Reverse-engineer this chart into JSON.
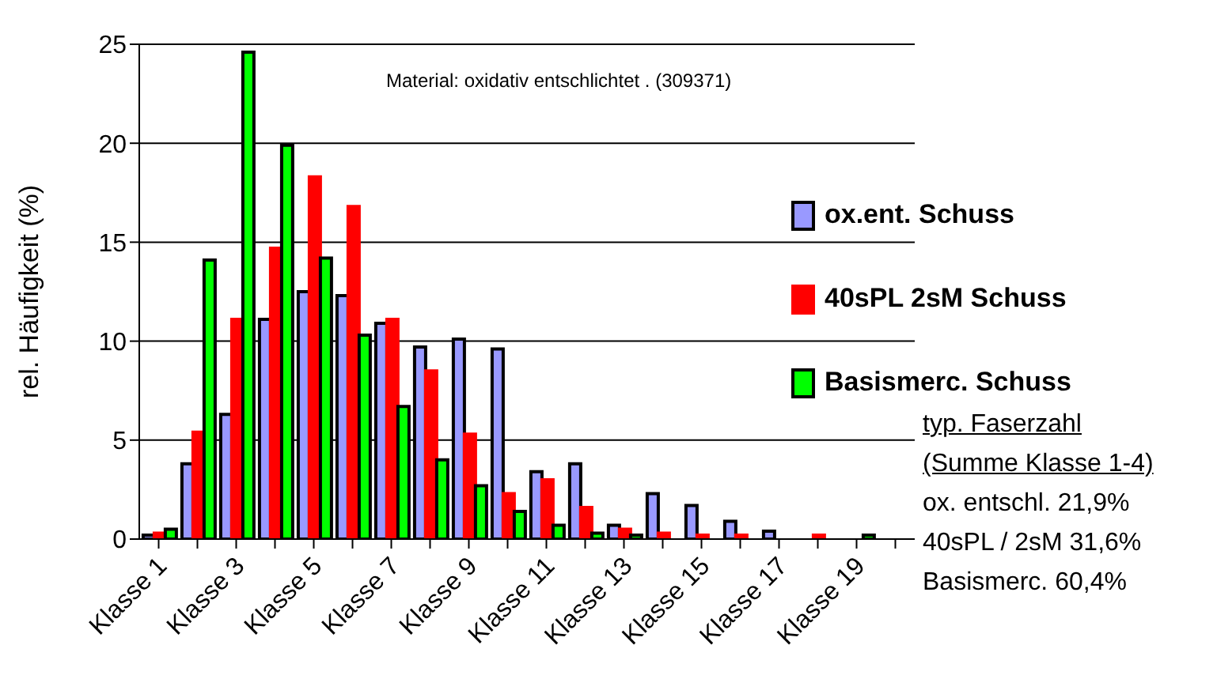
{
  "chart_data": {
    "type": "bar",
    "ylabel": "rel. Häufigkeit (%)",
    "categories": [
      "Klasse 1",
      null,
      "Klasse 3",
      null,
      "Klasse 5",
      null,
      "Klasse 7",
      null,
      "Klasse 9",
      null,
      "Klasse 11",
      null,
      "Klasse 13",
      null,
      "Klasse 15",
      null,
      "Klasse 17",
      null,
      "Klasse 19",
      null
    ],
    "series": [
      {
        "name": "ox.ent. Schuss",
        "color": "#9999ff",
        "values": [
          0.2,
          3.8,
          6.3,
          11.1,
          12.5,
          12.3,
          10.9,
          9.7,
          10.1,
          9.6,
          3.4,
          3.8,
          0.7,
          2.3,
          1.7,
          0.9,
          0.4,
          0,
          0,
          0
        ]
      },
      {
        "name": "40sPL 2sM Schuss",
        "color": "#ff0000",
        "values": [
          0.3,
          5.4,
          11.1,
          14.7,
          18.3,
          16.8,
          11.1,
          8.5,
          5.3,
          2.3,
          3.0,
          1.6,
          0.5,
          0.3,
          0.2,
          0.2,
          0,
          0.2,
          0,
          0
        ]
      },
      {
        "name": "Basismerc. Schuss",
        "color": "#00ff00",
        "values": [
          0.5,
          14.1,
          24.6,
          19.9,
          14.2,
          10.3,
          6.7,
          4.0,
          2.7,
          1.4,
          0.7,
          0.3,
          0.2,
          0,
          0,
          0,
          0,
          0,
          0.2,
          0
        ]
      }
    ],
    "ylim": [
      0,
      25
    ],
    "yticks": [
      0,
      5,
      10,
      15,
      20,
      25
    ],
    "grid": "y",
    "legend": "right",
    "annotations": [
      "Material: oxidativ entschlichtet . (309371)",
      "typ. Faserzahl",
      "(Summe Klasse 1-4)",
      "ox. entschl. 21,9%",
      "40sPL / 2sM 31,6%",
      "Basismerc. 60,4%"
    ]
  }
}
